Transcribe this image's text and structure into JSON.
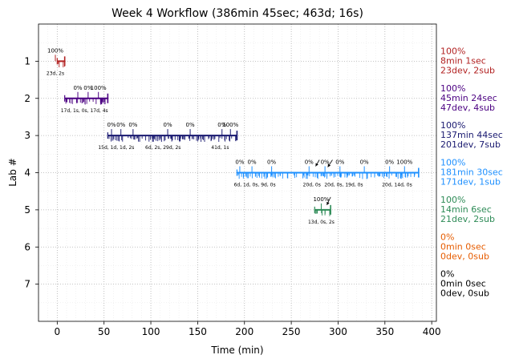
{
  "chart_data": {
    "type": "timeline",
    "title": "Week 4 Workflow (386min 45sec; 463d; 16s)",
    "xlabel": "Time (min)",
    "ylabel": "Lab #",
    "xlim": [
      -20,
      405
    ],
    "ylim": [
      8,
      0
    ],
    "grid": true,
    "x_ticks": [
      0,
      50,
      100,
      150,
      200,
      250,
      300,
      350,
      400
    ],
    "y_ticks": [
      1,
      2,
      3,
      4,
      5,
      6,
      7
    ],
    "labs": [
      {
        "lab": 1,
        "color": "#b22222",
        "start": 0,
        "end": 8,
        "pct_labels": [
          {
            "x": -2,
            "text": "100%"
          }
        ],
        "bottom_labels": [
          {
            "x": -2,
            "text": "23d, 2s"
          }
        ],
        "summary": [
          "100%",
          "8min 1sec",
          "23dev, 2sub"
        ]
      },
      {
        "lab": 2,
        "color": "#4b0082",
        "start": 8,
        "end": 54,
        "pct_labels": [
          {
            "x": 22,
            "text": "0%"
          },
          {
            "x": 33,
            "text": "0%"
          },
          {
            "x": 44,
            "text": "100%"
          }
        ],
        "bottom_labels": [
          {
            "x": 29,
            "text": "17d, 1s, 0s, 17d, 4s"
          }
        ],
        "summary": [
          "100%",
          "45min 24sec",
          "47dev, 4sub"
        ]
      },
      {
        "lab": 3,
        "color": "#191970",
        "start": 54,
        "end": 192,
        "pct_labels": [
          {
            "x": 58,
            "text": "0%"
          },
          {
            "x": 68,
            "text": "0%"
          },
          {
            "x": 81,
            "text": "0%"
          },
          {
            "x": 118,
            "text": "0%"
          },
          {
            "x": 142,
            "text": "0%"
          },
          {
            "x": 176,
            "text": "0%"
          },
          {
            "x": 185,
            "text": "100%"
          }
        ],
        "bottom_labels": [
          {
            "x": 63,
            "text": "15d, 1d, 1d, 2s"
          },
          {
            "x": 113,
            "text": "6d, 2s, 29d, 2s"
          },
          {
            "x": 174,
            "text": "41d, 1s"
          }
        ],
        "summary": [
          "100%",
          "137min 44sec",
          "201dev, 7sub"
        ]
      },
      {
        "lab": 4,
        "color": "#1e90ff",
        "start": 192,
        "end": 386,
        "pct_labels": [
          {
            "x": 195,
            "text": "0%"
          },
          {
            "x": 208,
            "text": "0%"
          },
          {
            "x": 229,
            "text": "0%"
          },
          {
            "x": 269,
            "text": "0%"
          },
          {
            "x": 286,
            "text": "0%"
          },
          {
            "x": 302,
            "text": "0%"
          },
          {
            "x": 328,
            "text": "0%"
          },
          {
            "x": 355,
            "text": "0%"
          },
          {
            "x": 371,
            "text": "100%"
          }
        ],
        "bottom_labels": [
          {
            "x": 211,
            "text": "6d, 1d, 0s, 9d, 0s"
          },
          {
            "x": 272,
            "text": "20d, 0s"
          },
          {
            "x": 306,
            "text": "20d, 0s, 19d, 0s"
          },
          {
            "x": 363,
            "text": "20d, 14d, 0s"
          }
        ],
        "summary": [
          "100%",
          "181min 30sec",
          "171dev, 1sub"
        ]
      },
      {
        "lab": 5,
        "color": "#2e8b57",
        "start": 275,
        "end": 292,
        "pct_labels": [
          {
            "x": 282,
            "text": "100%"
          }
        ],
        "bottom_labels": [
          {
            "x": 282,
            "text": "13d, 0s, 2s"
          }
        ],
        "summary": [
          "100%",
          "14min 6sec",
          "21dev, 2sub"
        ]
      },
      {
        "lab": 6,
        "color": "#e65c00",
        "start": null,
        "end": null,
        "pct_labels": [],
        "bottom_labels": [],
        "summary": [
          "0%",
          "0min 0sec",
          "0dev, 0sub"
        ]
      },
      {
        "lab": 7,
        "color": "#000000",
        "start": null,
        "end": null,
        "pct_labels": [],
        "bottom_labels": [],
        "summary": [
          "0%",
          "0min 0sec",
          "0dev, 0sub"
        ]
      }
    ]
  }
}
